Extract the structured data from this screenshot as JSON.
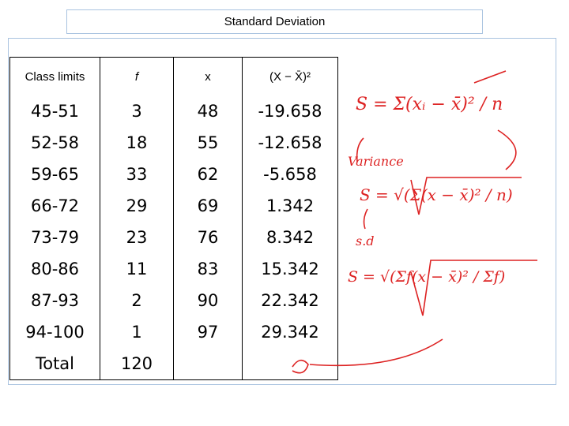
{
  "header": {
    "title": "Standard Deviation"
  },
  "table": {
    "columns": [
      "Class limits",
      "f",
      "x",
      "(X − X̄)²"
    ],
    "rows": [
      [
        "45-51",
        3,
        48,
        -19.658
      ],
      [
        "52-58",
        18,
        55,
        -12.658
      ],
      [
        "59-65",
        33,
        62,
        -5.658
      ],
      [
        "66-72",
        29,
        69,
        1.342
      ],
      [
        "73-79",
        23,
        76,
        8.342
      ],
      [
        "80-86",
        11,
        83,
        15.342
      ],
      [
        "87-93",
        2,
        90,
        22.342
      ],
      [
        "94-100",
        1,
        97,
        29.342
      ]
    ],
    "total": [
      "Total",
      120
    ]
  },
  "annotations": {
    "formula_1": "S = Σ(xᵢ − x̄)² / n",
    "label_1": "Variance",
    "formula_2": "S = √(Σ(x − x̄)² / n)",
    "label_2": "s.d",
    "formula_3": "S = √(Σf(x − x̄)² / Σf)"
  }
}
